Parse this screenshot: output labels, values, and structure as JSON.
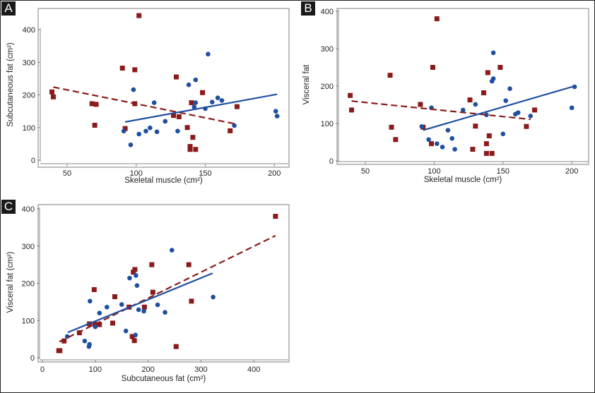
{
  "colors": {
    "red": "#8b1a1a",
    "blue": "#1f4fa0",
    "frame": "#a8a8a8",
    "axis": "#888888"
  },
  "chart_data": [
    {
      "panel": "A",
      "type": "scatter",
      "title": "",
      "xlabel": "Skeletal muscle (cm²)",
      "ylabel": "Subcutaneous fat (cm²)",
      "xlim": [
        30,
        211
      ],
      "ylim": [
        0,
        440
      ],
      "xticks": [
        50,
        100,
        150,
        200
      ],
      "yticks": [
        0,
        100,
        200,
        300,
        400
      ],
      "grid": false,
      "series": [
        {
          "name": "red-squares",
          "marker": "square",
          "color": "#8b1a1a",
          "points": [
            [
              39,
              209
            ],
            [
              40,
              194
            ],
            [
              68,
              173
            ],
            [
              71,
              171
            ],
            [
              70,
              107
            ],
            [
              90,
              282
            ],
            [
              99,
              277
            ],
            [
              102,
              443
            ],
            [
              99,
              173
            ],
            [
              92,
              97
            ],
            [
              127,
              137
            ],
            [
              129,
              255
            ],
            [
              131,
              133
            ],
            [
              137,
              100
            ],
            [
              140,
              176
            ],
            [
              141,
              70
            ],
            [
              148,
              207
            ],
            [
              139,
              42
            ],
            [
              139,
              33
            ],
            [
              143,
              33
            ],
            [
              168,
              90
            ],
            [
              173,
              164
            ]
          ],
          "trend": {
            "style": "dashed",
            "from": [
              40,
              224
            ],
            "to": [
              172,
              111
            ]
          }
        },
        {
          "name": "blue-circles",
          "marker": "circle",
          "color": "#1f4fa0",
          "points": [
            [
              91,
              89
            ],
            [
              96,
              47
            ],
            [
              98,
              216
            ],
            [
              102,
              80
            ],
            [
              107,
              89
            ],
            [
              110,
              99
            ],
            [
              113,
              176
            ],
            [
              115,
              87
            ],
            [
              121,
              119
            ],
            [
              130,
              89
            ],
            [
              138,
              231
            ],
            [
              142,
              163
            ],
            [
              143,
              176
            ],
            [
              143,
              246
            ],
            [
              150,
              158
            ],
            [
              152,
              325
            ],
            [
              155,
              178
            ],
            [
              159,
              191
            ],
            [
              162,
              183
            ],
            [
              171,
              106
            ],
            [
              201,
              150
            ],
            [
              202,
              135
            ]
          ],
          "trend": {
            "style": "solid",
            "from": [
              92,
              117
            ],
            "to": [
              202,
              202
            ]
          }
        }
      ]
    },
    {
      "panel": "B",
      "type": "scatter",
      "title": "",
      "xlabel": "Skeletal muscle (cm²)",
      "ylabel": "Visceral fat",
      "xlim": [
        30,
        211
      ],
      "ylim": [
        0,
        400
      ],
      "xticks": [
        50,
        100,
        150,
        200
      ],
      "yticks": [
        0,
        100,
        200,
        300,
        400
      ],
      "grid": false,
      "series": [
        {
          "name": "red-squares",
          "marker": "square",
          "color": "#8b1a1a",
          "points": [
            [
              39,
              175
            ],
            [
              40,
              136
            ],
            [
              68,
              229
            ],
            [
              69,
              90
            ],
            [
              72,
              57
            ],
            [
              90,
              151
            ],
            [
              92,
              90
            ],
            [
              98,
              46
            ],
            [
              99,
              250
            ],
            [
              102,
              380
            ],
            [
              126,
              163
            ],
            [
              128,
              31
            ],
            [
              130,
              93
            ],
            [
              136,
              182
            ],
            [
              138,
              46
            ],
            [
              138,
              20
            ],
            [
              139,
              236
            ],
            [
              140,
              67
            ],
            [
              142,
              20
            ],
            [
              148,
              250
            ],
            [
              167,
              92
            ],
            [
              173,
              136
            ]
          ],
          "trend": {
            "style": "dashed",
            "from": [
              40,
              160
            ],
            "to": [
              170,
              111
            ]
          }
        },
        {
          "name": "blue-circles",
          "marker": "circle",
          "color": "#1f4fa0",
          "points": [
            [
              91,
              92
            ],
            [
              96,
              57
            ],
            [
              98,
              142
            ],
            [
              102,
              46
            ],
            [
              106,
              37
            ],
            [
              110,
              82
            ],
            [
              113,
              60
            ],
            [
              115,
              31
            ],
            [
              121,
              136
            ],
            [
              130,
              151
            ],
            [
              138,
              123
            ],
            [
              142,
              213
            ],
            [
              143,
              220
            ],
            [
              143,
              289
            ],
            [
              150,
              72
            ],
            [
              152,
              161
            ],
            [
              155,
              193
            ],
            [
              159,
              125
            ],
            [
              161,
              129
            ],
            [
              170,
              120
            ],
            [
              200,
              142
            ],
            [
              202,
              198
            ]
          ],
          "trend": {
            "style": "solid",
            "from": [
              92,
              82
            ],
            "to": [
              202,
              200
            ]
          }
        }
      ]
    },
    {
      "panel": "C",
      "type": "scatter",
      "title": "",
      "xlabel": "Subcutaneous fat (cm²)",
      "ylabel": "Visceral fat (cm²)",
      "xlim": [
        -8,
        467
      ],
      "ylim": [
        -10,
        410
      ],
      "xticks": [
        0,
        100,
        200,
        300,
        400
      ],
      "yticks": [
        0,
        100,
        200,
        300,
        400
      ],
      "grid": false,
      "series": [
        {
          "name": "red-squares",
          "marker": "square",
          "color": "#8b1a1a",
          "points": [
            [
              31,
              19
            ],
            [
              33,
              19
            ],
            [
              41,
              45
            ],
            [
              70,
              67
            ],
            [
              89,
              91
            ],
            [
              98,
              183
            ],
            [
              99,
              90
            ],
            [
              108,
              89
            ],
            [
              133,
              93
            ],
            [
              137,
              164
            ],
            [
              164,
              136
            ],
            [
              170,
              57
            ],
            [
              172,
              230
            ],
            [
              174,
              46
            ],
            [
              175,
              237
            ],
            [
              193,
              136
            ],
            [
              207,
              250
            ],
            [
              209,
              176
            ],
            [
              253,
              30
            ],
            [
              277,
              250
            ],
            [
              282,
              152
            ],
            [
              441,
              380
            ]
          ],
          "trend": {
            "style": "dashed",
            "from": [
              32,
              43
            ],
            "to": [
              441,
              328
            ]
          }
        },
        {
          "name": "blue-circles",
          "marker": "circle",
          "color": "#1f4fa0",
          "points": [
            [
              47,
              57
            ],
            [
              80,
              45
            ],
            [
              88,
              30
            ],
            [
              89,
              36
            ],
            [
              90,
              152
            ],
            [
              100,
              83
            ],
            [
              108,
              120
            ],
            [
              122,
              136
            ],
            [
              150,
              143
            ],
            [
              158,
              72
            ],
            [
              165,
              214
            ],
            [
              176,
              61
            ],
            [
              177,
              221
            ],
            [
              179,
              194
            ],
            [
              182,
              129
            ],
            [
              192,
              125
            ],
            [
              218,
              142
            ],
            [
              232,
              122
            ],
            [
              245,
              289
            ],
            [
              323,
              163
            ]
          ],
          "trend": {
            "style": "solid",
            "from": [
              48,
              68
            ],
            "to": [
              322,
              227
            ]
          }
        }
      ]
    }
  ]
}
